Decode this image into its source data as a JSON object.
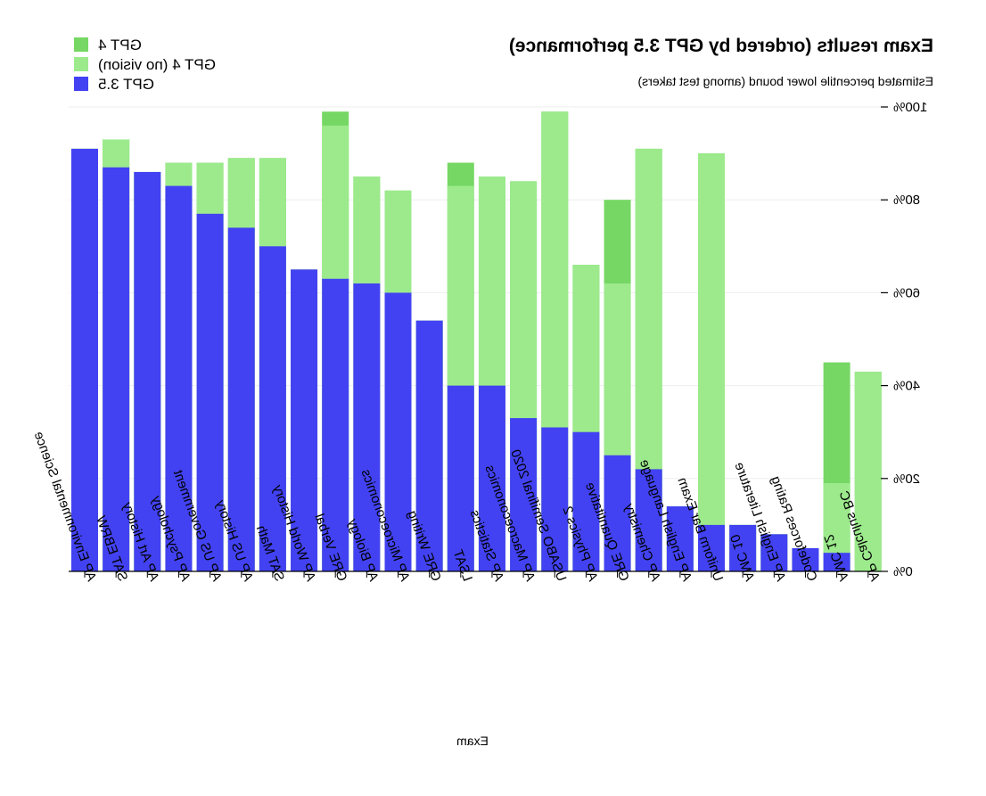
{
  "chart_data": {
    "type": "bar",
    "orientation": "mirrored",
    "title": "Exam results (ordered by GPT 3.5 performance)",
    "subtitle": "Estimated percentile lower bound (among test takers)",
    "xlabel": "Exam",
    "ylabel": "",
    "ylim": [
      0,
      100
    ],
    "yticks": [
      0,
      20,
      40,
      60,
      80,
      100
    ],
    "ytick_labels": [
      "0%",
      "20%",
      "40%",
      "60%",
      "80%",
      "100%"
    ],
    "legend_position": "top-left",
    "colors": {
      "gpt35": "#4242f2",
      "gpt4_no_vision": "#9cea8c",
      "gpt4": "#76d764",
      "grid": "#eeeeee",
      "axis": "#000000"
    },
    "legend": [
      {
        "name": "GPT 4",
        "color": "#76d764"
      },
      {
        "name": "GPT 4 (no vision)",
        "color": "#9cea8c"
      },
      {
        "name": "GPT 3.5",
        "color": "#4242f2"
      }
    ],
    "categories": [
      "AP Environmental Science",
      "SAT EBRW",
      "AP Art History",
      "AP Psychology",
      "AP US Government",
      "AP US History",
      "SAT Math",
      "AP World History",
      "GRE Verbal",
      "AP Biology",
      "AP Microeconomics",
      "GRE Writing",
      "LSAT",
      "AP Statistics",
      "AP Macroeconomics",
      "USABO Semifinal 2020",
      "AP Physics 2",
      "GRE Quantitative",
      "AP Chemistry",
      "AP English Language",
      "Uniform Bar Exam",
      "AMC 10",
      "AP English Literature",
      "Codeforces Rating",
      "AMC 12",
      "AP Calculus BC"
    ],
    "series": [
      {
        "name": "GPT 3.5",
        "values": [
          91,
          87,
          86,
          83,
          77,
          74,
          70,
          65,
          63,
          62,
          60,
          54,
          40,
          40,
          33,
          31,
          30,
          25,
          22,
          14,
          10,
          10,
          8,
          5,
          4,
          0
        ]
      },
      {
        "name": "GPT 4 (no vision)",
        "values": [
          91,
          93,
          86,
          88,
          88,
          89,
          89,
          65,
          96,
          85,
          82,
          54,
          83,
          85,
          84,
          99,
          66,
          62,
          91,
          14,
          90,
          10,
          8,
          5,
          19,
          43
        ]
      },
      {
        "name": "GPT 4",
        "values": [
          91,
          93,
          86,
          88,
          88,
          89,
          89,
          65,
          99,
          85,
          82,
          54,
          88,
          85,
          84,
          99,
          66,
          80,
          91,
          14,
          90,
          10,
          8,
          5,
          45,
          43
        ]
      }
    ]
  }
}
